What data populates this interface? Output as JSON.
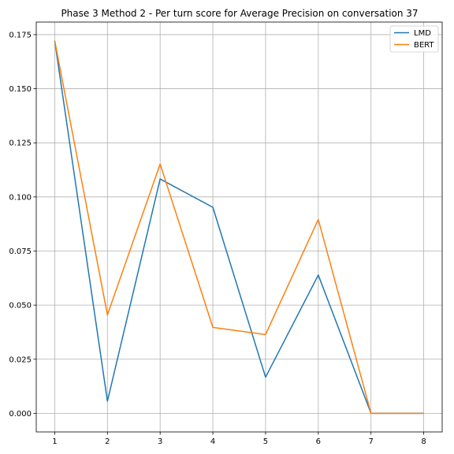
{
  "chart_data": {
    "type": "line",
    "title": "Phase 3 Method 2 - Per turn score for Average Precision on conversation 37",
    "xlabel": "",
    "ylabel": "",
    "x": [
      1,
      2,
      3,
      4,
      5,
      6,
      7,
      8
    ],
    "xlim": [
      0.65,
      8.35
    ],
    "ylim": [
      -0.0086,
      0.1808
    ],
    "x_ticks": [
      1,
      2,
      3,
      4,
      5,
      6,
      7,
      8
    ],
    "y_ticks": [
      0.0,
      0.025,
      0.05,
      0.075,
      0.1,
      0.125,
      0.15,
      0.175
    ],
    "y_tick_labels": [
      "0.000",
      "0.025",
      "0.050",
      "0.075",
      "0.100",
      "0.125",
      "0.150",
      "0.175"
    ],
    "grid": true,
    "legend_position": "top-right",
    "series": [
      {
        "name": "LMD",
        "color": "#1f77b4",
        "values": [
          0.1722,
          0.0056,
          0.1083,
          0.0952,
          0.0167,
          0.0639,
          0.0,
          0.0
        ]
      },
      {
        "name": "BERT",
        "color": "#ff7f0e",
        "values": [
          0.1722,
          0.0455,
          0.1152,
          0.0397,
          0.0364,
          0.0896,
          0.0,
          0.0
        ]
      }
    ]
  }
}
